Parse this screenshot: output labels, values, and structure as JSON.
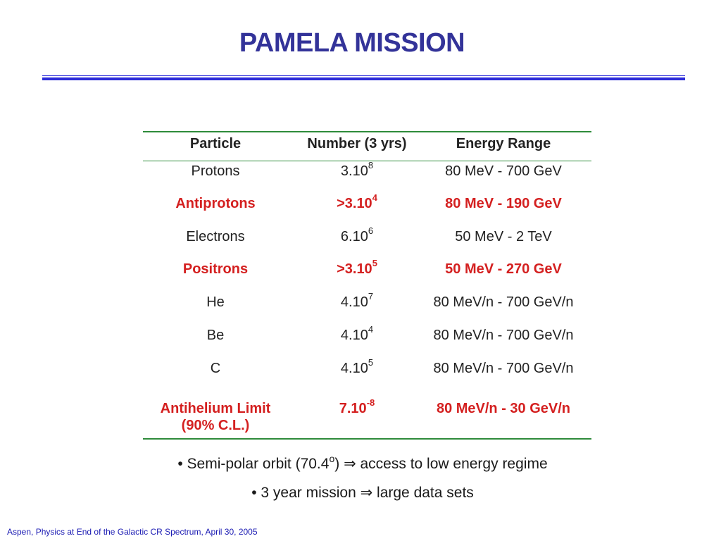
{
  "slide": {
    "title": "PAMELA MISSION",
    "footer": "Aspen, Physics at End of the Galactic CR Spectrum, April 30, 2005"
  },
  "table": {
    "headers": [
      "Particle",
      "Number (3 yrs)",
      "Energy Range"
    ],
    "rows": [
      {
        "particle": "Protons",
        "number_base": "3.10",
        "number_exp": "8",
        "energy": "80 MeV - 700 GeV",
        "highlight": false
      },
      {
        "particle": "Antiprotons",
        "number_base": ">3.10",
        "number_exp": "4",
        "energy": "80 MeV - 190 GeV",
        "highlight": true
      },
      {
        "particle": "Electrons",
        "number_base": "6.10",
        "number_exp": "6",
        "energy": "50 MeV - 2 TeV",
        "highlight": false
      },
      {
        "particle": "Positrons",
        "number_base": ">3.10",
        "number_exp": "5",
        "energy": "50 MeV - 270 GeV",
        "highlight": true
      },
      {
        "particle": "He",
        "number_base": "4.10",
        "number_exp": "7",
        "energy": "80 MeV/n - 700 GeV/n",
        "highlight": false
      },
      {
        "particle": "Be",
        "number_base": "4.10",
        "number_exp": "4",
        "energy": "80 MeV/n - 700 GeV/n",
        "highlight": false
      },
      {
        "particle": "C",
        "number_base": "4.10",
        "number_exp": "5",
        "energy": "80 MeV/n - 700 GeV/n",
        "highlight": false
      },
      {
        "particle": "Antihelium Limit",
        "particle_line2": "(90% C.L.)",
        "number_base": "7.10",
        "number_exp": "-8",
        "energy": "80 MeV/n - 30 GeV/n",
        "highlight": true
      }
    ]
  },
  "bullets": {
    "orbit_pre": "• Semi-polar orbit (70.4",
    "orbit_degree": "o",
    "orbit_post": ") ⇒ access to low energy regime",
    "mission": "• 3 year mission ⇒ large data sets"
  },
  "colors": {
    "title": "#333399",
    "rule": "#2b2bd9",
    "table_rule": "#2e8b3a",
    "highlight": "#d42020",
    "footer": "#1b1bb3"
  }
}
